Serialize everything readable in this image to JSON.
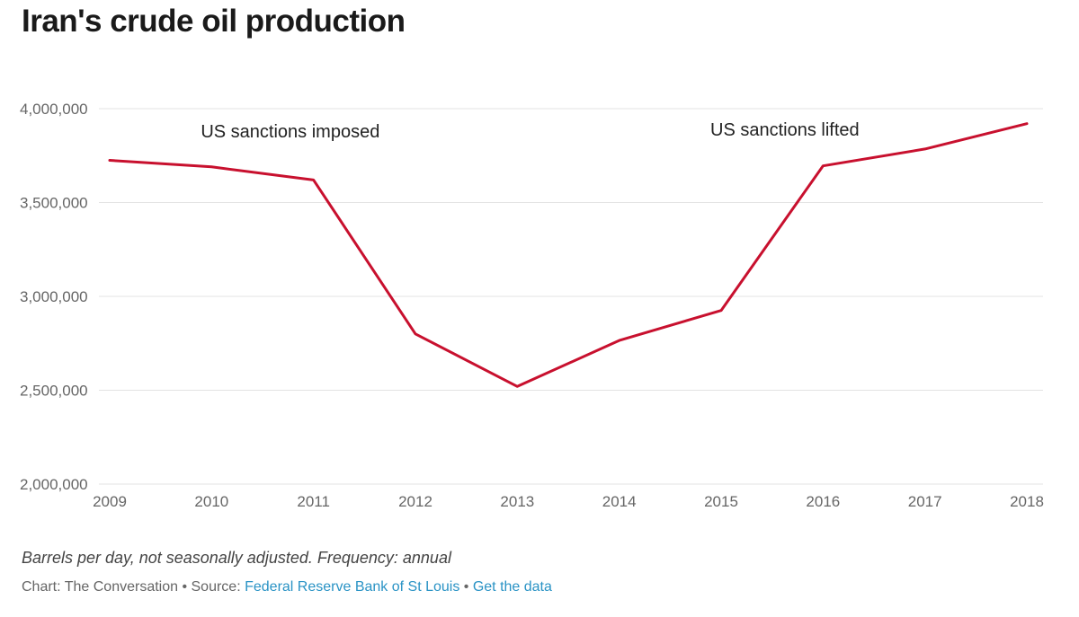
{
  "chart_data": {
    "type": "line",
    "title": "Iran's crude oil production",
    "x": [
      2009,
      2010,
      2011,
      2012,
      2013,
      2014,
      2015,
      2016,
      2017,
      2018
    ],
    "series": [
      {
        "values": [
          3725000,
          3690000,
          3620000,
          2800000,
          2520000,
          2765000,
          2925000,
          3695000,
          3785000,
          3920000
        ],
        "color": "#c8102e"
      }
    ],
    "ylim": [
      2000000,
      4000000
    ],
    "yticks": [
      4000000,
      3500000,
      3000000,
      2500000,
      2000000
    ],
    "ytick_labels": [
      "4,000,000",
      "3,500,000",
      "3,000,000",
      "2,500,000",
      "2,000,000"
    ],
    "xtick_labels": [
      "2009",
      "2010",
      "2011",
      "2012",
      "2013",
      "2014",
      "2015",
      "2016",
      "2017",
      "2018"
    ],
    "annotations": [
      {
        "text": "US sanctions imposed",
        "x": 2010,
        "y": 3880000
      },
      {
        "text": "US sanctions lifted",
        "x": 2015,
        "y": 3890000
      }
    ],
    "grid": true,
    "xlabel": "",
    "ylabel": ""
  },
  "notes": "Barrels per day, not seasonally adjusted. Frequency: annual",
  "credits": {
    "chart_prefix": "Chart: The Conversation • Source: ",
    "source_link": "Federal Reserve Bank of St Louis",
    "separator": " • ",
    "data_link": "Get the data"
  }
}
